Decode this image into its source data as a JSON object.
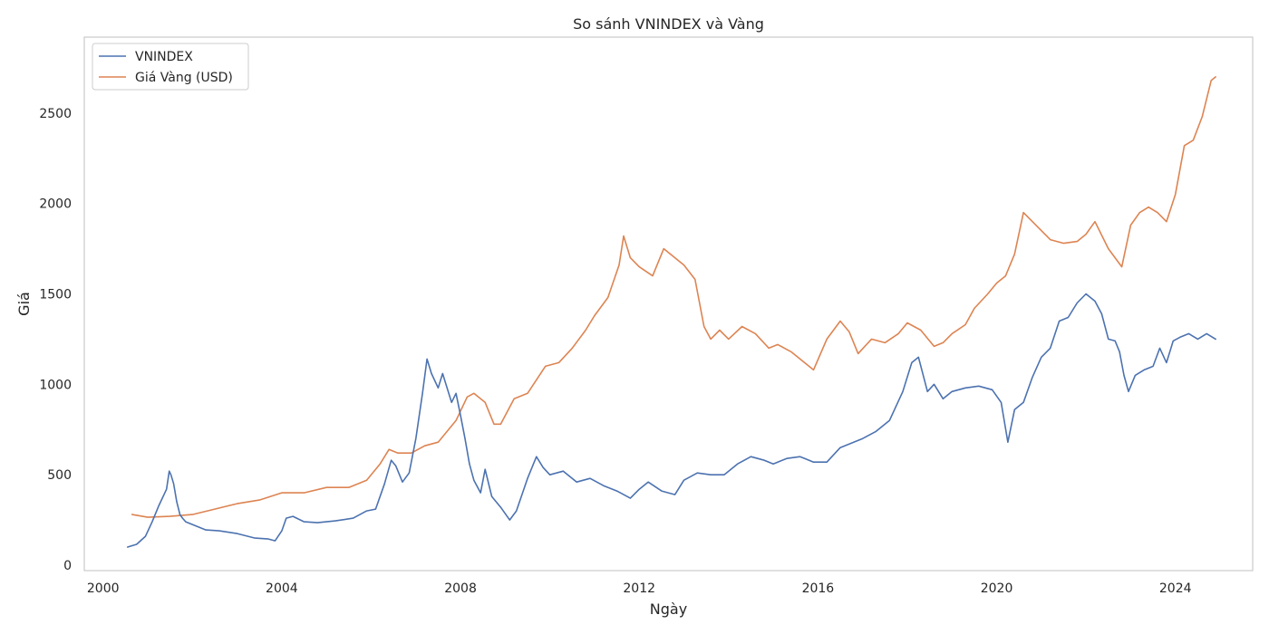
{
  "chart_data": {
    "type": "line",
    "title": "So sánh VNINDEX và Vàng",
    "xlabel": "Ngày",
    "ylabel": "Giá",
    "xlim": [
      1999.58,
      2025.73
    ],
    "ylim": [
      -30,
      2920
    ],
    "grid": false,
    "legend_position": "top-left",
    "x_ticks": [
      2000,
      2004,
      2008,
      2012,
      2016,
      2020,
      2024
    ],
    "y_ticks": [
      0,
      500,
      1000,
      1500,
      2000,
      2500
    ],
    "series": [
      {
        "name": "VNINDEX",
        "color": "#4c72b0",
        "x": [
          2000.55,
          2000.75,
          2000.95,
          2001.1,
          2001.25,
          2001.42,
          2001.48,
          2001.52,
          2001.58,
          2001.65,
          2001.72,
          2001.78,
          2001.85,
          2001.95,
          2002.1,
          2002.3,
          2002.6,
          2003.0,
          2003.4,
          2003.7,
          2003.85,
          2004.0,
          2004.1,
          2004.25,
          2004.5,
          2004.8,
          2005.2,
          2005.6,
          2005.9,
          2006.1,
          2006.3,
          2006.45,
          2006.55,
          2006.7,
          2006.85,
          2007.0,
          2007.15,
          2007.25,
          2007.35,
          2007.5,
          2007.6,
          2007.8,
          2007.9,
          2008.0,
          2008.1,
          2008.2,
          2008.3,
          2008.45,
          2008.55,
          2008.7,
          2008.9,
          2009.1,
          2009.25,
          2009.5,
          2009.7,
          2009.85,
          2010.0,
          2010.3,
          2010.6,
          2010.9,
          2011.2,
          2011.5,
          2011.8,
          2012.0,
          2012.2,
          2012.5,
          2012.8,
          2013.0,
          2013.3,
          2013.6,
          2013.9,
          2014.2,
          2014.5,
          2014.8,
          2015.0,
          2015.3,
          2015.6,
          2015.9,
          2016.2,
          2016.5,
          2016.8,
          2017.0,
          2017.3,
          2017.6,
          2017.9,
          2018.1,
          2018.25,
          2018.45,
          2018.6,
          2018.8,
          2019.0,
          2019.3,
          2019.6,
          2019.9,
          2020.1,
          2020.25,
          2020.4,
          2020.6,
          2020.8,
          2021.0,
          2021.2,
          2021.4,
          2021.6,
          2021.8,
          2022.0,
          2022.2,
          2022.35,
          2022.5,
          2022.65,
          2022.75,
          2022.85,
          2022.95,
          2023.1,
          2023.3,
          2023.5,
          2023.65,
          2023.8,
          2023.95,
          2024.1,
          2024.3,
          2024.5,
          2024.7,
          2024.9
        ],
        "values": [
          100,
          115,
          160,
          240,
          330,
          420,
          520,
          500,
          450,
          350,
          280,
          260,
          240,
          230,
          215,
          195,
          190,
          175,
          150,
          145,
          135,
          190,
          260,
          270,
          240,
          235,
          245,
          260,
          300,
          310,
          450,
          580,
          550,
          460,
          510,
          700,
          950,
          1140,
          1060,
          980,
          1060,
          900,
          950,
          830,
          700,
          560,
          470,
          400,
          530,
          380,
          320,
          250,
          300,
          480,
          600,
          540,
          500,
          520,
          460,
          480,
          440,
          410,
          370,
          420,
          460,
          410,
          390,
          470,
          510,
          500,
          500,
          560,
          600,
          580,
          560,
          590,
          600,
          570,
          570,
          650,
          680,
          700,
          740,
          800,
          960,
          1120,
          1150,
          960,
          1000,
          920,
          960,
          980,
          990,
          970,
          900,
          680,
          860,
          900,
          1040,
          1150,
          1200,
          1350,
          1370,
          1450,
          1500,
          1460,
          1390,
          1250,
          1240,
          1180,
          1050,
          960,
          1050,
          1080,
          1100,
          1200,
          1120,
          1240,
          1260,
          1280,
          1250,
          1280,
          1250
        ]
      },
      {
        "name": "Giá Vàng (USD)",
        "color": "#dd8452",
        "x": [
          2000.65,
          2001.0,
          2001.5,
          2002.0,
          2002.5,
          2003.0,
          2003.5,
          2004.0,
          2004.5,
          2005.0,
          2005.5,
          2005.9,
          2006.2,
          2006.4,
          2006.6,
          2006.9,
          2007.2,
          2007.5,
          2007.9,
          2008.15,
          2008.3,
          2008.55,
          2008.75,
          2008.9,
          2009.2,
          2009.5,
          2009.9,
          2010.2,
          2010.5,
          2010.8,
          2011.0,
          2011.3,
          2011.55,
          2011.65,
          2011.8,
          2012.0,
          2012.3,
          2012.55,
          2012.8,
          2013.0,
          2013.25,
          2013.45,
          2013.6,
          2013.8,
          2014.0,
          2014.3,
          2014.6,
          2014.9,
          2015.1,
          2015.4,
          2015.7,
          2015.9,
          2016.2,
          2016.5,
          2016.7,
          2016.9,
          2017.2,
          2017.5,
          2017.8,
          2018.0,
          2018.3,
          2018.6,
          2018.8,
          2019.0,
          2019.3,
          2019.5,
          2019.8,
          2020.0,
          2020.2,
          2020.4,
          2020.6,
          2020.8,
          2021.0,
          2021.2,
          2021.5,
          2021.8,
          2022.0,
          2022.2,
          2022.5,
          2022.8,
          2023.0,
          2023.2,
          2023.4,
          2023.6,
          2023.8,
          2024.0,
          2024.2,
          2024.4,
          2024.6,
          2024.8,
          2024.9
        ],
        "values": [
          280,
          265,
          270,
          280,
          310,
          340,
          360,
          400,
          400,
          430,
          430,
          470,
          560,
          640,
          620,
          620,
          660,
          680,
          800,
          930,
          950,
          900,
          780,
          780,
          920,
          950,
          1100,
          1120,
          1200,
          1300,
          1380,
          1480,
          1660,
          1820,
          1700,
          1650,
          1600,
          1750,
          1700,
          1660,
          1580,
          1320,
          1250,
          1300,
          1250,
          1320,
          1280,
          1200,
          1220,
          1180,
          1120,
          1080,
          1250,
          1350,
          1290,
          1170,
          1250,
          1230,
          1280,
          1340,
          1300,
          1210,
          1230,
          1280,
          1330,
          1420,
          1500,
          1560,
          1600,
          1720,
          1950,
          1900,
          1850,
          1800,
          1780,
          1790,
          1830,
          1900,
          1750,
          1650,
          1880,
          1950,
          1980,
          1950,
          1900,
          2050,
          2320,
          2350,
          2480,
          2680,
          2700
        ]
      }
    ]
  }
}
